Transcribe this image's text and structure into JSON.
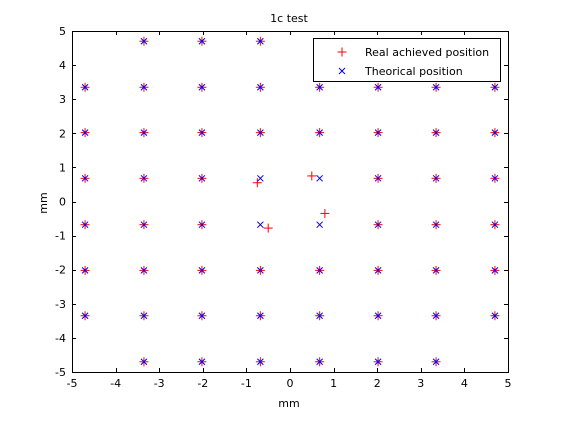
{
  "chart_data": {
    "type": "scatter",
    "title": "1c test",
    "xlabel": "mm",
    "ylabel": "mm",
    "xlim": [
      -5,
      5
    ],
    "ylim": [
      -5,
      5
    ],
    "xticks": [
      -5,
      -4,
      -3,
      -2,
      -1,
      0,
      1,
      2,
      3,
      4,
      5
    ],
    "yticks": [
      -5,
      -4,
      -3,
      -2,
      -1,
      0,
      1,
      2,
      3,
      4,
      5
    ],
    "grid": false,
    "legend_position": "top-right",
    "series": [
      {
        "name": "Real achieved position",
        "marker": "plus",
        "color": "#ff0000",
        "points": [
          [
            -3.35,
            4.7
          ],
          [
            -2.02,
            4.7
          ],
          [
            -0.68,
            4.7
          ],
          [
            -4.7,
            3.35
          ],
          [
            -3.35,
            3.35
          ],
          [
            -2.02,
            3.35
          ],
          [
            -0.68,
            3.35
          ],
          [
            0.68,
            3.35
          ],
          [
            2.02,
            3.35
          ],
          [
            3.35,
            3.35
          ],
          [
            4.7,
            3.35
          ],
          [
            -4.7,
            2.02
          ],
          [
            -3.35,
            2.02
          ],
          [
            -2.02,
            2.02
          ],
          [
            -0.68,
            2.02
          ],
          [
            0.68,
            2.02
          ],
          [
            2.02,
            2.02
          ],
          [
            3.35,
            2.02
          ],
          [
            4.7,
            2.02
          ],
          [
            -4.7,
            0.68
          ],
          [
            -3.35,
            0.68
          ],
          [
            -2.02,
            0.68
          ],
          [
            -0.75,
            0.55
          ],
          [
            0.5,
            0.75
          ],
          [
            2.02,
            0.68
          ],
          [
            3.35,
            0.68
          ],
          [
            4.7,
            0.68
          ],
          [
            -4.7,
            -0.68
          ],
          [
            -3.35,
            -0.68
          ],
          [
            -2.02,
            -0.68
          ],
          [
            -0.5,
            -0.78
          ],
          [
            0.8,
            -0.35
          ],
          [
            2.02,
            -0.68
          ],
          [
            3.35,
            -0.68
          ],
          [
            4.7,
            -0.68
          ],
          [
            -4.7,
            -2.02
          ],
          [
            -3.35,
            -2.02
          ],
          [
            -2.02,
            -2.02
          ],
          [
            -0.68,
            -2.02
          ],
          [
            0.68,
            -2.02
          ],
          [
            2.02,
            -2.02
          ],
          [
            3.35,
            -2.02
          ],
          [
            4.7,
            -2.02
          ],
          [
            -4.7,
            -3.35
          ],
          [
            -3.35,
            -3.35
          ],
          [
            -2.02,
            -3.35
          ],
          [
            -0.68,
            -3.35
          ],
          [
            0.68,
            -3.35
          ],
          [
            2.02,
            -3.35
          ],
          [
            3.35,
            -3.35
          ],
          [
            4.7,
            -3.35
          ],
          [
            -3.35,
            -4.7
          ],
          [
            -2.02,
            -4.7
          ],
          [
            -0.68,
            -4.7
          ],
          [
            0.68,
            -4.7
          ],
          [
            2.02,
            -4.7
          ],
          [
            3.35,
            -4.7
          ]
        ]
      },
      {
        "name": "Theorical position",
        "marker": "x",
        "color": "#0000ff",
        "points": [
          [
            -3.35,
            4.7
          ],
          [
            -2.02,
            4.7
          ],
          [
            -0.68,
            4.7
          ],
          [
            -4.7,
            3.35
          ],
          [
            -3.35,
            3.35
          ],
          [
            -2.02,
            3.35
          ],
          [
            -0.68,
            3.35
          ],
          [
            0.68,
            3.35
          ],
          [
            2.02,
            3.35
          ],
          [
            3.35,
            3.35
          ],
          [
            4.7,
            3.35
          ],
          [
            -4.7,
            2.02
          ],
          [
            -3.35,
            2.02
          ],
          [
            -2.02,
            2.02
          ],
          [
            -0.68,
            2.02
          ],
          [
            0.68,
            2.02
          ],
          [
            2.02,
            2.02
          ],
          [
            3.35,
            2.02
          ],
          [
            4.7,
            2.02
          ],
          [
            -4.7,
            0.68
          ],
          [
            -3.35,
            0.68
          ],
          [
            -2.02,
            0.68
          ],
          [
            -0.68,
            0.68
          ],
          [
            0.68,
            0.68
          ],
          [
            2.02,
            0.68
          ],
          [
            3.35,
            0.68
          ],
          [
            4.7,
            0.68
          ],
          [
            -4.7,
            -0.68
          ],
          [
            -3.35,
            -0.68
          ],
          [
            -2.02,
            -0.68
          ],
          [
            -0.68,
            -0.68
          ],
          [
            0.68,
            -0.68
          ],
          [
            2.02,
            -0.68
          ],
          [
            3.35,
            -0.68
          ],
          [
            4.7,
            -0.68
          ],
          [
            -4.7,
            -2.02
          ],
          [
            -3.35,
            -2.02
          ],
          [
            -2.02,
            -2.02
          ],
          [
            -0.68,
            -2.02
          ],
          [
            0.68,
            -2.02
          ],
          [
            2.02,
            -2.02
          ],
          [
            3.35,
            -2.02
          ],
          [
            4.7,
            -2.02
          ],
          [
            -4.7,
            -3.35
          ],
          [
            -3.35,
            -3.35
          ],
          [
            -2.02,
            -3.35
          ],
          [
            -0.68,
            -3.35
          ],
          [
            0.68,
            -3.35
          ],
          [
            2.02,
            -3.35
          ],
          [
            3.35,
            -3.35
          ],
          [
            4.7,
            -3.35
          ],
          [
            -3.35,
            -4.7
          ],
          [
            -2.02,
            -4.7
          ],
          [
            -0.68,
            -4.7
          ],
          [
            0.68,
            -4.7
          ],
          [
            2.02,
            -4.7
          ],
          [
            3.35,
            -4.7
          ]
        ]
      }
    ]
  }
}
